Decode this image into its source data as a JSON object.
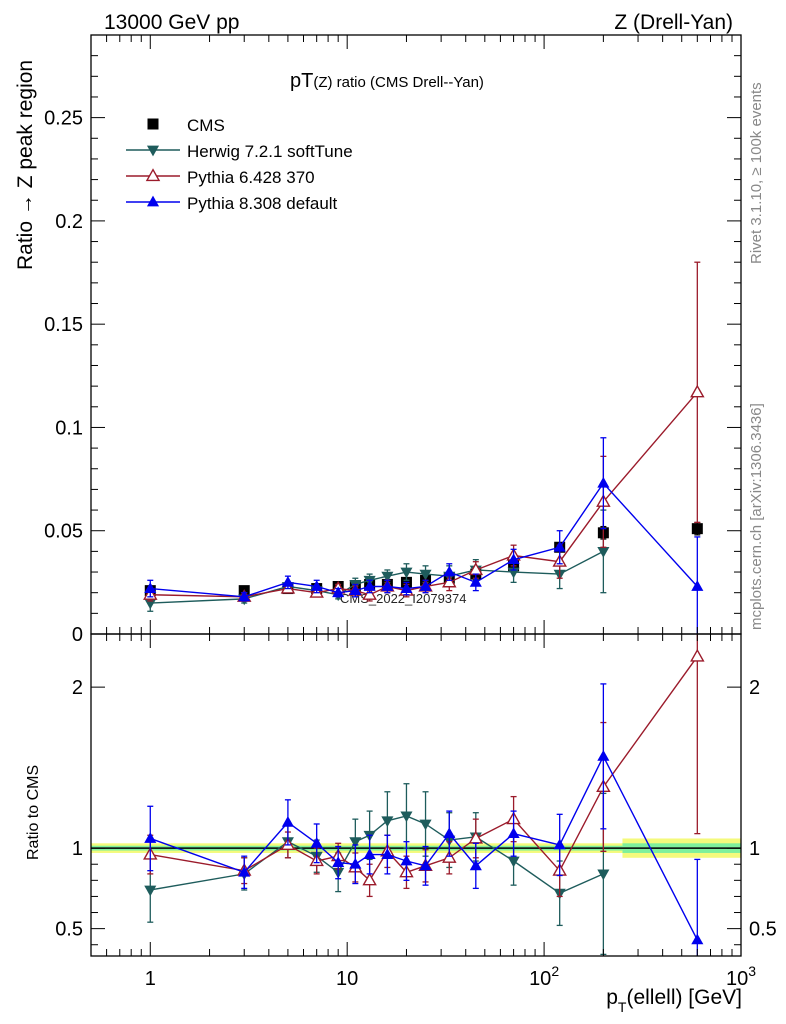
{
  "header": {
    "left": "13000 GeV pp",
    "right": "Z (Drell-Yan)"
  },
  "side_text": {
    "rivet": "Rivet 3.1.10, ≥ 100k events",
    "mcplots": "mcplots.cern.ch [arXiv:1306.3436]"
  },
  "watermark": "CMS_2022_I2079374",
  "chart_data": [
    {
      "type": "scatter",
      "panel": "main",
      "title": "pT(Z) ratio (CMS Drell--Yan)",
      "title_main": "pT",
      "title_sub": "(Z) ratio (CMS Drell--Yan)",
      "ylabel": "Ratio → Z peak region",
      "xscale": "log",
      "xlim": [
        0.5,
        1000
      ],
      "ylim": [
        0,
        0.29
      ],
      "yticks": [
        0,
        0.05,
        0.1,
        0.15,
        0.2,
        0.25
      ],
      "ytick_labels": [
        "0",
        "0.05",
        "0.1",
        "0.15",
        "0.2",
        "0.25"
      ],
      "legend_placement": "top-left",
      "series": [
        {
          "name": "CMS",
          "color": "#000000",
          "marker": "square",
          "x": [
            1,
            3,
            5,
            7,
            9,
            11,
            13,
            16,
            20,
            25,
            33,
            45,
            70,
            120,
            200,
            600
          ],
          "y": [
            0.021,
            0.021,
            0.022,
            0.022,
            0.023,
            0.023,
            0.024,
            0.024,
            0.025,
            0.026,
            0.027,
            0.029,
            0.033,
            0.042,
            0.049,
            0.051
          ],
          "err": [
            0.002,
            0.002,
            0.002,
            0.002,
            0.002,
            0.002,
            0.002,
            0.002,
            0.002,
            0.002,
            0.002,
            0.002,
            0.002,
            0.002,
            0.003,
            0.003
          ]
        },
        {
          "name": "Herwig 7.2.1 softTune",
          "color": "#1e5c5c",
          "marker": "triangle-down",
          "x": [
            1,
            3,
            5,
            7,
            9,
            11,
            13,
            16,
            20,
            25,
            33,
            45,
            70,
            120,
            200
          ],
          "y": [
            0.015,
            0.017,
            0.023,
            0.021,
            0.019,
            0.024,
            0.026,
            0.028,
            0.03,
            0.029,
            0.028,
            0.031,
            0.03,
            0.029,
            0.04
          ],
          "err": [
            0.004,
            0.002,
            0.002,
            0.002,
            0.002,
            0.003,
            0.003,
            0.003,
            0.004,
            0.004,
            0.005,
            0.005,
            0.005,
            0.007,
            0.02
          ]
        },
        {
          "name": "Pythia 6.428 370",
          "color": "#9b1b2b",
          "marker": "triangle-open",
          "x": [
            1,
            3,
            5,
            7,
            9,
            11,
            13,
            16,
            20,
            25,
            33,
            45,
            70,
            120,
            200,
            600
          ],
          "y": [
            0.019,
            0.018,
            0.022,
            0.02,
            0.022,
            0.021,
            0.019,
            0.023,
            0.021,
            0.023,
            0.025,
            0.031,
            0.038,
            0.035,
            0.064,
            0.117
          ],
          "err": [
            0.003,
            0.002,
            0.002,
            0.002,
            0.002,
            0.002,
            0.003,
            0.003,
            0.003,
            0.003,
            0.004,
            0.004,
            0.005,
            0.008,
            0.022,
            0.063
          ]
        },
        {
          "name": "Pythia 8.308 default",
          "color": "#0000ee",
          "marker": "triangle-up",
          "x": [
            1,
            3,
            5,
            7,
            9,
            11,
            13,
            16,
            20,
            25,
            33,
            45,
            70,
            120,
            200,
            600
          ],
          "y": [
            0.022,
            0.018,
            0.025,
            0.023,
            0.02,
            0.021,
            0.023,
            0.023,
            0.022,
            0.023,
            0.03,
            0.025,
            0.036,
            0.042,
            0.073,
            0.023
          ],
          "err": [
            0.004,
            0.002,
            0.003,
            0.003,
            0.002,
            0.003,
            0.003,
            0.003,
            0.003,
            0.003,
            0.004,
            0.004,
            0.005,
            0.008,
            0.022,
            0.024
          ]
        }
      ]
    },
    {
      "type": "scatter",
      "panel": "ratio",
      "ylabel": "Ratio to CMS",
      "xlabel_main": "p",
      "xlabel_sub": "T",
      "xlabel_rest": "(ellell) [GeV]",
      "xscale": "log",
      "xlim": [
        0.5,
        1000
      ],
      "ylim": [
        0.33,
        2.33
      ],
      "yticks": [
        0.5,
        1,
        2
      ],
      "ytick_labels": [
        "0.5",
        "1",
        "2"
      ],
      "xticks": [
        1,
        10,
        100,
        1000
      ],
      "xtick_labels": [
        {
          "base": "1",
          "exp": ""
        },
        {
          "base": "10",
          "exp": ""
        },
        {
          "base": "10",
          "exp": "2"
        },
        {
          "base": "10",
          "exp": "3"
        }
      ],
      "reference_band": {
        "color_inner": "#7ef09c",
        "color_outer": "#f4fa7c",
        "line_color": "#000000",
        "edges": [
          0.5,
          250,
          1000
        ],
        "inner": [
          0.015,
          0.03
        ],
        "outer": [
          0.03,
          0.06
        ]
      },
      "series": [
        {
          "name": "Herwig 7.2.1 softTune",
          "color": "#1e5c5c",
          "marker": "triangle-down",
          "x": [
            1,
            3,
            5,
            7,
            9,
            11,
            13,
            16,
            20,
            25,
            33,
            45,
            70,
            120,
            200
          ],
          "y": [
            0.74,
            0.84,
            1.04,
            0.95,
            0.85,
            1.04,
            1.08,
            1.17,
            1.2,
            1.15,
            1.05,
            1.07,
            0.92,
            0.72,
            0.84
          ],
          "err": [
            0.2,
            0.1,
            0.1,
            0.1,
            0.12,
            0.14,
            0.15,
            0.18,
            0.2,
            0.2,
            0.17,
            0.15,
            0.15,
            0.2,
            0.5
          ]
        },
        {
          "name": "Pythia 6.428 370",
          "color": "#9b1b2b",
          "marker": "triangle-open",
          "x": [
            1,
            3,
            5,
            7,
            9,
            11,
            13,
            16,
            20,
            25,
            33,
            45,
            70,
            120,
            200,
            600
          ],
          "y": [
            0.96,
            0.86,
            1.02,
            0.92,
            0.95,
            0.88,
            0.8,
            0.98,
            0.85,
            0.89,
            0.94,
            1.06,
            1.18,
            0.86,
            1.38,
            2.19
          ],
          "err": [
            0.12,
            0.08,
            0.08,
            0.08,
            0.08,
            0.09,
            0.1,
            0.1,
            0.1,
            0.1,
            0.1,
            0.12,
            0.14,
            0.16,
            0.4,
            1.1
          ]
        },
        {
          "name": "Pythia 8.308 default",
          "color": "#0000ee",
          "marker": "triangle-up",
          "x": [
            1,
            3,
            5,
            7,
            9,
            11,
            13,
            16,
            20,
            25,
            33,
            45,
            70,
            120,
            200,
            600
          ],
          "y": [
            1.06,
            0.85,
            1.16,
            1.03,
            0.91,
            0.9,
            0.96,
            0.96,
            0.92,
            0.89,
            1.09,
            0.89,
            1.09,
            1.02,
            1.57,
            0.43
          ],
          "err": [
            0.2,
            0.1,
            0.14,
            0.12,
            0.1,
            0.12,
            0.12,
            0.12,
            0.12,
            0.12,
            0.14,
            0.14,
            0.14,
            0.19,
            0.45,
            0.5
          ]
        }
      ]
    }
  ]
}
